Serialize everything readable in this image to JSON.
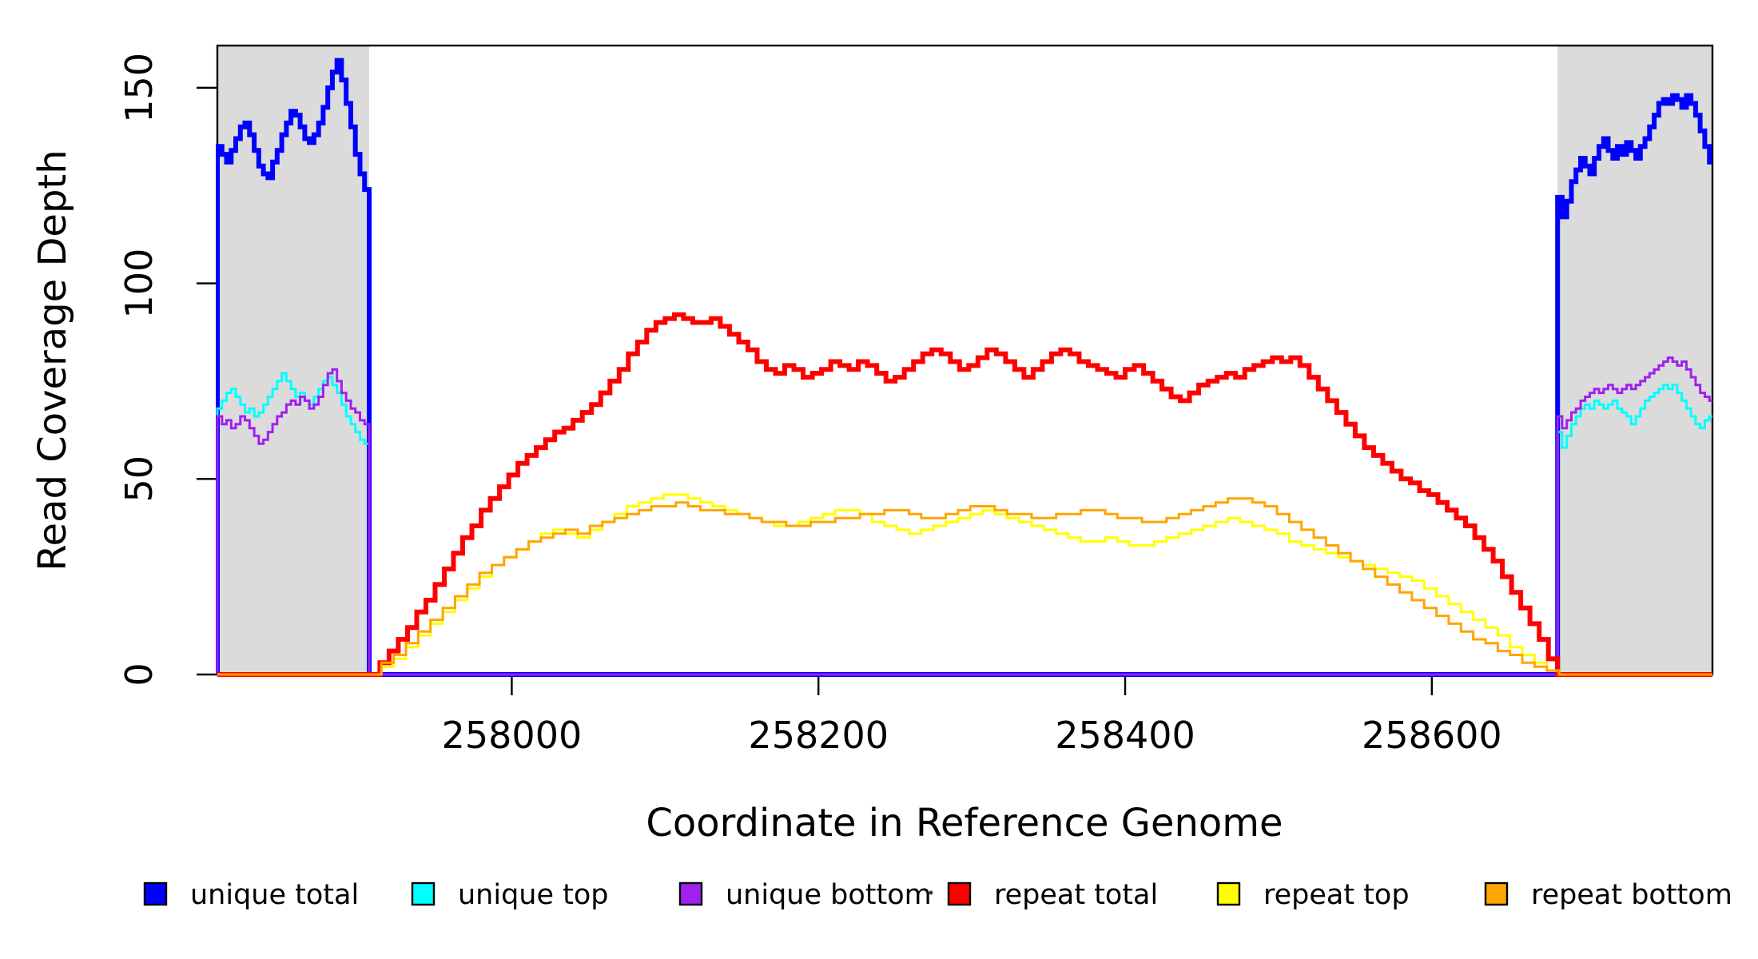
{
  "figure": {
    "background_color": "#FFFFFF",
    "plot_border_color": "#000000",
    "shaded_region_color": "#DBDBDB"
  },
  "y_axis": {
    "title": "Read Coverage Depth",
    "tick_labels": [
      "0",
      "50",
      "100",
      "150"
    ]
  },
  "x_axis": {
    "title": "Coordinate in Reference Genome",
    "tick_labels": [
      "258000",
      "258200",
      "258400",
      "258600"
    ]
  },
  "legend": {
    "entries": [
      {
        "label": "unique total",
        "color": "#0000FF"
      },
      {
        "label": "unique top",
        "color": "#00FFFF"
      },
      {
        "label": "unique bottom",
        "color": "#A020F0"
      },
      {
        "label": "repeat total",
        "color": "#FF0000"
      },
      {
        "label": "repeat top",
        "color": "#FFFF00"
      },
      {
        "label": "repeat bottom",
        "color": "#FFA500"
      }
    ]
  },
  "chart_data": {
    "type": "line",
    "subtype": "step-coverage",
    "title": "",
    "xlabel": "Coordinate in Reference Genome",
    "ylabel": "Read Coverage Depth",
    "xlim": [
      257808,
      258783
    ],
    "ylim": [
      0,
      160.8
    ],
    "x_ticks": [
      258000,
      258200,
      258400,
      258600
    ],
    "y_ticks": [
      0,
      50,
      100,
      150
    ],
    "grid": false,
    "legend_position": "bottom",
    "shaded_regions": [
      {
        "x1": 257808,
        "x2": 257907,
        "color": "#DBDBDB"
      },
      {
        "x1": 258682,
        "x2": 258783,
        "color": "#DBDBDB"
      }
    ],
    "series": [
      {
        "name": "unique total",
        "color": "#0000FF",
        "line_width": 6,
        "segments": [
          {
            "x_start": 257808,
            "x_step": 3,
            "end": "drop",
            "values": [
              135,
              133,
              131,
              134,
              137,
              140,
              141,
              138,
              134,
              130,
              128,
              127,
              131,
              134,
              138,
              141,
              144,
              143,
              140,
              137,
              136,
              138,
              141,
              145,
              150,
              154,
              157,
              152,
              146,
              140,
              133,
              128,
              124
            ]
          },
          {
            "x_start": 258682,
            "x_step": 3,
            "end": "hold",
            "values": [
              122,
              117,
              121,
              126,
              129,
              132,
              130,
              128,
              132,
              135,
              137,
              134,
              132,
              135,
              133,
              136,
              134,
              132,
              135,
              137,
              140,
              143,
              146,
              147,
              146,
              148,
              147,
              145,
              148,
              146,
              143,
              139,
              135,
              131
            ]
          }
        ]
      },
      {
        "name": "unique top",
        "color": "#00FFFF",
        "line_width": 3,
        "segments": [
          {
            "x_start": 257808,
            "x_step": 3,
            "end": "drop",
            "values": [
              68,
              70,
              72,
              73,
              71,
              69,
              67,
              68,
              66,
              67,
              69,
              71,
              73,
              75,
              77,
              75,
              73,
              71,
              72,
              70,
              69,
              71,
              73,
              75,
              76,
              74,
              72,
              69,
              66,
              64,
              62,
              60,
              59
            ]
          },
          {
            "x_start": 258682,
            "x_step": 3,
            "end": "hold",
            "values": [
              62,
              58,
              61,
              64,
              66,
              68,
              69,
              68,
              70,
              69,
              68,
              69,
              70,
              68,
              67,
              66,
              64,
              66,
              68,
              70,
              71,
              72,
              73,
              74,
              73,
              74,
              72,
              70,
              68,
              66,
              64,
              63,
              65,
              66
            ]
          }
        ]
      },
      {
        "name": "unique bottom",
        "color": "#A020F0",
        "line_width": 3,
        "segments": [
          {
            "x_start": 257808,
            "x_step": 3,
            "end": "drop",
            "values": [
              66,
              64,
              65,
              63,
              64,
              66,
              65,
              63,
              61,
              59,
              60,
              62,
              64,
              66,
              67,
              69,
              70,
              69,
              71,
              70,
              68,
              69,
              71,
              74,
              77,
              78,
              75,
              72,
              70,
              68,
              67,
              65,
              64
            ]
          },
          {
            "x_start": 258682,
            "x_step": 3,
            "end": "hold",
            "values": [
              66,
              63,
              65,
              67,
              68,
              70,
              71,
              72,
              73,
              72,
              73,
              74,
              73,
              72,
              73,
              74,
              73,
              74,
              75,
              76,
              77,
              78,
              79,
              80,
              81,
              80,
              79,
              80,
              78,
              76,
              74,
              72,
              71,
              70
            ]
          }
        ]
      },
      {
        "name": "repeat total",
        "color": "#FF0000",
        "line_width": 6,
        "segments": [
          {
            "x_start": 257908,
            "x_step": 6,
            "end": "hold",
            "values": [
              0,
              3,
              6,
              9,
              12,
              16,
              19,
              23,
              27,
              31,
              35,
              38,
              42,
              45,
              48,
              51,
              54,
              56,
              58,
              60,
              62,
              63,
              65,
              67,
              69,
              72,
              75,
              78,
              82,
              85,
              88,
              90,
              91,
              92,
              91,
              90,
              90,
              91,
              89,
              87,
              85,
              83,
              80,
              78,
              77,
              79,
              78,
              76,
              77,
              78,
              80,
              79,
              78,
              80,
              79,
              77,
              75,
              76,
              78,
              80,
              82,
              83,
              82,
              80,
              78,
              79,
              81,
              83,
              82,
              80,
              78,
              76,
              78,
              80,
              82,
              83,
              82,
              80,
              79,
              78,
              77,
              76,
              78,
              79,
              77,
              75,
              73,
              71,
              70,
              72,
              74,
              75,
              76,
              77,
              76,
              78,
              79,
              80,
              81,
              80,
              81,
              79,
              76,
              73,
              70,
              67,
              64,
              61,
              58,
              56,
              54,
              52,
              50,
              49,
              47,
              46,
              44,
              42,
              40,
              38,
              35,
              32,
              29,
              25,
              21,
              17,
              13,
              9,
              4,
              0
            ]
          }
        ]
      },
      {
        "name": "repeat top",
        "color": "#FFFF00",
        "line_width": 3,
        "segments": [
          {
            "x_start": 257907,
            "x_step": 8,
            "end": "hold",
            "values": [
              0,
              2,
              4,
              7,
              10,
              13,
              16,
              19,
              22,
              25,
              28,
              30,
              32,
              34,
              36,
              37,
              36,
              35,
              37,
              39,
              41,
              43,
              44,
              45,
              46,
              46,
              45,
              44,
              43,
              42,
              41,
              40,
              39,
              38,
              38,
              39,
              40,
              41,
              42,
              42,
              41,
              39,
              38,
              37,
              36,
              37,
              38,
              39,
              40,
              41,
              42,
              41,
              40,
              39,
              38,
              37,
              36,
              35,
              34,
              34,
              35,
              34,
              33,
              33,
              34,
              35,
              36,
              37,
              38,
              39,
              40,
              39,
              38,
              37,
              36,
              34,
              33,
              32,
              31,
              30,
              29,
              28,
              27,
              26,
              25,
              24,
              22,
              20,
              18,
              16,
              14,
              12,
              10,
              7,
              5,
              3,
              1,
              0
            ]
          }
        ]
      },
      {
        "name": "repeat bottom",
        "color": "#FFA500",
        "line_width": 3,
        "segments": [
          {
            "x_start": 257907,
            "x_step": 8,
            "end": "hold",
            "values": [
              0,
              3,
              5,
              8,
              11,
              14,
              17,
              20,
              23,
              26,
              28,
              30,
              32,
              34,
              35,
              36,
              37,
              36,
              38,
              39,
              40,
              41,
              42,
              43,
              43,
              44,
              43,
              42,
              42,
              41,
              41,
              40,
              39,
              39,
              38,
              38,
              39,
              39,
              40,
              40,
              41,
              41,
              42,
              42,
              41,
              40,
              40,
              41,
              42,
              43,
              43,
              42,
              41,
              41,
              40,
              40,
              41,
              41,
              42,
              42,
              41,
              40,
              40,
              39,
              39,
              40,
              41,
              42,
              43,
              44,
              45,
              45,
              44,
              43,
              41,
              39,
              37,
              35,
              33,
              31,
              29,
              27,
              25,
              23,
              21,
              19,
              17,
              15,
              13,
              11,
              9,
              8,
              6,
              5,
              3,
              2,
              1,
              0
            ]
          }
        ]
      }
    ]
  }
}
